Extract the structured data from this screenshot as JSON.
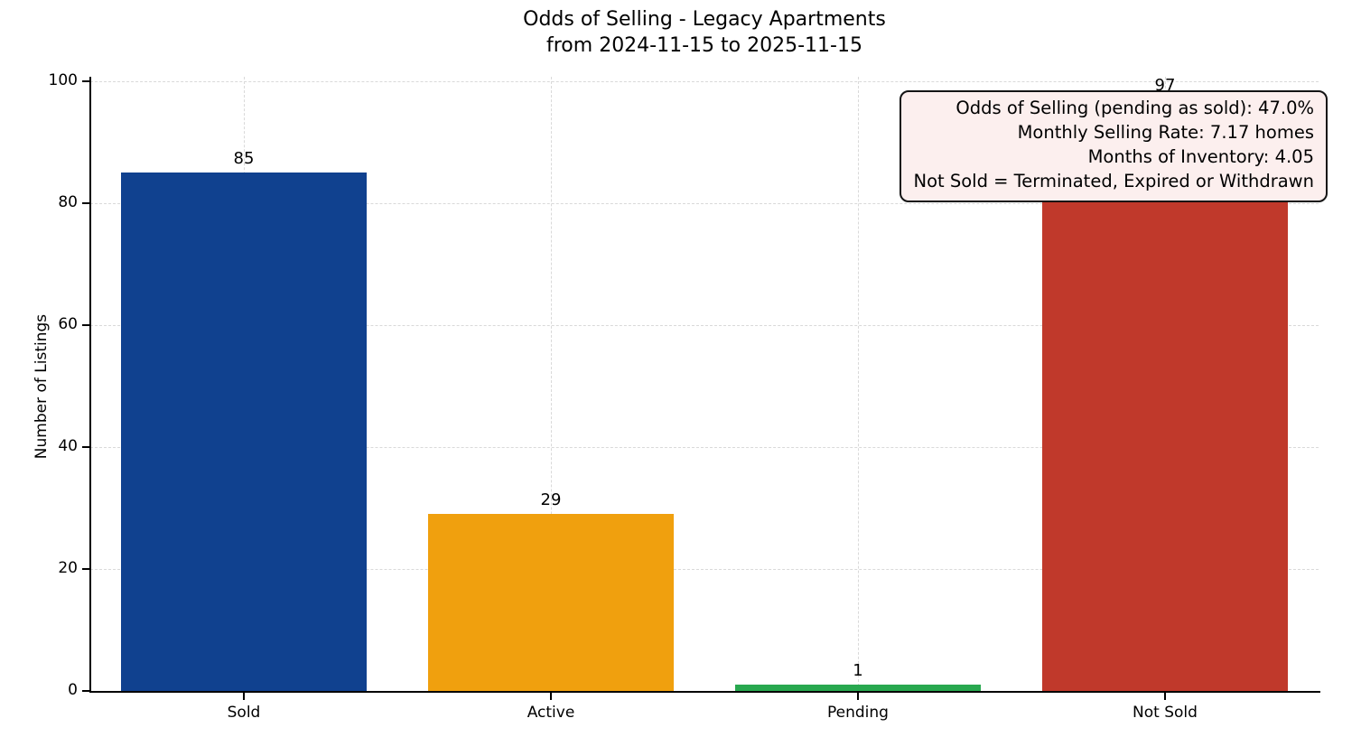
{
  "chart_data": {
    "type": "bar",
    "title": "Odds of Selling - Legacy Apartments",
    "subtitle": "from 2024-11-15 to 2025-11-15",
    "categories": [
      "Sold",
      "Active",
      "Pending",
      "Not Sold"
    ],
    "values": [
      85,
      29,
      1,
      97
    ],
    "bar_colors": [
      "#10418f",
      "#f0a00e",
      "#28a84f",
      "#c0392b"
    ],
    "xlabel": "",
    "ylabel": "Number of Listings",
    "ylim": [
      0,
      100.7
    ],
    "yticks": [
      0,
      20,
      40,
      60,
      80,
      100
    ],
    "grid": "dashed-both-axes",
    "legend": "none",
    "annotation": {
      "lines": [
        "Odds of Selling (pending as sold): 47.0%",
        "Monthly Selling Rate: 7.17 homes",
        "Months of Inventory: 4.05",
        "Not Sold = Terminated, Expired or Withdrawn"
      ],
      "background": "#fcefee",
      "border_color": "#141414"
    }
  }
}
